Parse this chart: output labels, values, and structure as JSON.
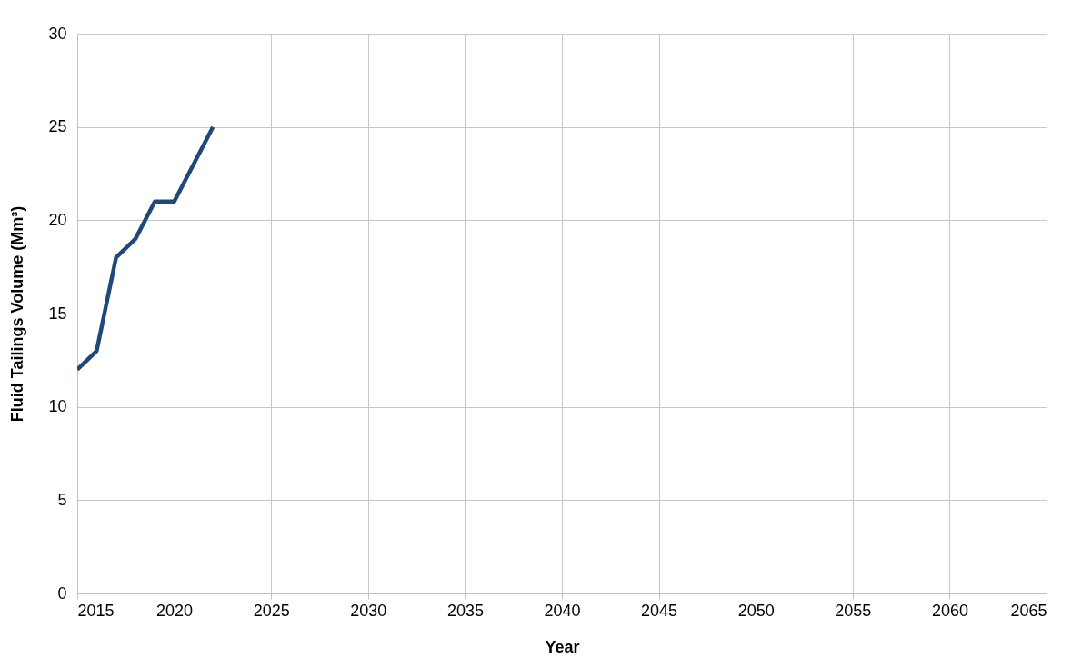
{
  "chart_data": {
    "type": "line",
    "xlabel": "Year",
    "ylabel": "Fluid Tailings Volume (Mm³)",
    "x": [
      2015,
      2016,
      2017,
      2018,
      2019,
      2020,
      2021,
      2022
    ],
    "series": [
      {
        "color": "#1f497d",
        "values": [
          12,
          13,
          18,
          19,
          21,
          21,
          23,
          25
        ]
      }
    ],
    "xlim": [
      2015,
      2065
    ],
    "xticks": [
      2015,
      2020,
      2025,
      2030,
      2035,
      2040,
      2045,
      2050,
      2055,
      2060,
      2065
    ],
    "ylim": [
      0,
      30
    ],
    "yticks": [
      0,
      5,
      10,
      15,
      20,
      25,
      30
    ],
    "grid": true,
    "marker": "none",
    "line_style": "solid"
  }
}
